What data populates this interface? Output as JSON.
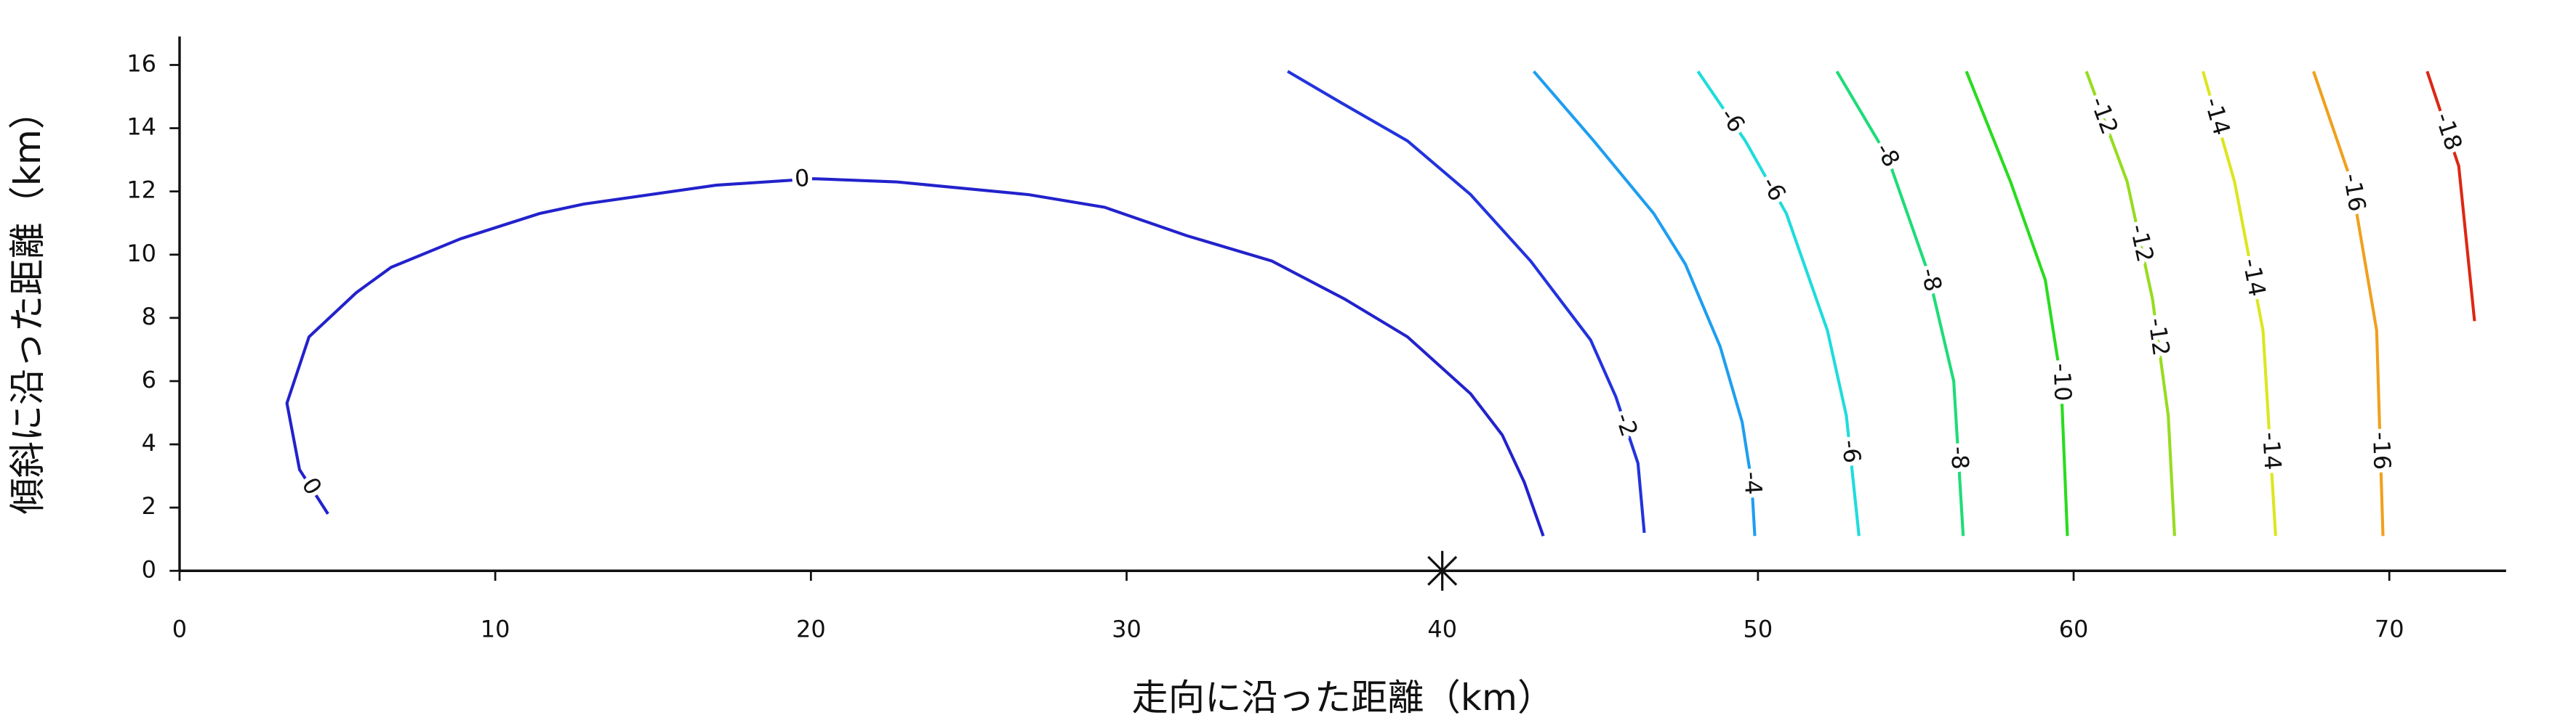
{
  "chart_data": {
    "type": "contour",
    "xlabel": "走向に沿った距離（km）",
    "ylabel": "傾斜に沿った距離（km）",
    "xlim": [
      0,
      73.7
    ],
    "ylim": [
      0,
      16.9
    ],
    "xticks": [
      0,
      10,
      20,
      30,
      40,
      50,
      60,
      70
    ],
    "yticks": [
      0,
      2,
      4,
      6,
      8,
      10,
      12,
      14,
      16
    ],
    "markers": [
      {
        "x": 40,
        "y": 0
      }
    ],
    "series": [
      {
        "name": "0",
        "color": "#2222cc",
        "x": [
          4.7,
          3.8,
          3.4,
          4.1,
          5.6,
          6.7,
          8.9,
          11.4,
          12.8,
          17,
          20.1,
          22.7,
          26.9,
          29.3,
          31.9,
          34.6,
          36.9,
          38.9,
          40.9,
          41.9,
          42.6,
          43.2
        ],
        "y": [
          1.8,
          3.2,
          5.3,
          7.4,
          8.8,
          9.6,
          10.5,
          11.3,
          11.6,
          12.2,
          12.4,
          12.3,
          11.9,
          11.5,
          10.6,
          9.8,
          8.6,
          7.4,
          5.6,
          4.3,
          2.8,
          1.1
        ]
      },
      {
        "name": "-2",
        "color": "#2233dd",
        "x": [
          35.1,
          36.8,
          38.9,
          40.9,
          42.8,
          44.7,
          45.5,
          46.2,
          46.4
        ],
        "y": [
          15.8,
          14.8,
          13.6,
          11.9,
          9.8,
          7.3,
          5.5,
          3.4,
          1.2
        ]
      },
      {
        "name": "-4",
        "color": "#1e9ef0",
        "x": [
          42.9,
          44.8,
          46.7,
          47.7,
          48.8,
          49.5,
          49.8,
          49.9
        ],
        "y": [
          15.8,
          13.6,
          11.3,
          9.7,
          7.1,
          4.7,
          2.8,
          1.1
        ]
      },
      {
        "name": "-6",
        "color": "#1edcdc",
        "x": [
          48.1,
          49.6,
          50.9,
          52.2,
          52.8,
          53.2
        ],
        "y": [
          15.8,
          13.6,
          11.3,
          7.6,
          4.9,
          1.1
        ]
      },
      {
        "name": "-8",
        "color": "#1edc78",
        "x": [
          52.5,
          54.1,
          55.4,
          56.2,
          56.5
        ],
        "y": [
          15.8,
          13.1,
          9.4,
          6.0,
          1.1
        ]
      },
      {
        "name": "-10",
        "color": "#28dc1e",
        "x": [
          56.6,
          58.0,
          59.1,
          59.6,
          59.8
        ],
        "y": [
          15.8,
          12.3,
          9.2,
          6.0,
          1.1
        ]
      },
      {
        "name": "-12",
        "color": "#96dc1e",
        "x": [
          60.4,
          61.7,
          62.5,
          63.0,
          63.2
        ],
        "y": [
          15.8,
          12.3,
          8.6,
          4.9,
          1.1
        ]
      },
      {
        "name": "-14",
        "color": "#dce61e",
        "x": [
          64.1,
          65.1,
          66.0,
          66.4
        ],
        "y": [
          15.8,
          12.3,
          7.6,
          1.1
        ]
      },
      {
        "name": "-16",
        "color": "#f0a01e",
        "x": [
          67.6,
          68.8,
          69.6,
          69.8
        ],
        "y": [
          15.8,
          12.3,
          7.6,
          1.1
        ]
      },
      {
        "name": "-18",
        "color": "#dc2814",
        "x": [
          71.2,
          72.2,
          72.7
        ],
        "y": [
          15.8,
          12.8,
          7.9
        ]
      }
    ]
  }
}
